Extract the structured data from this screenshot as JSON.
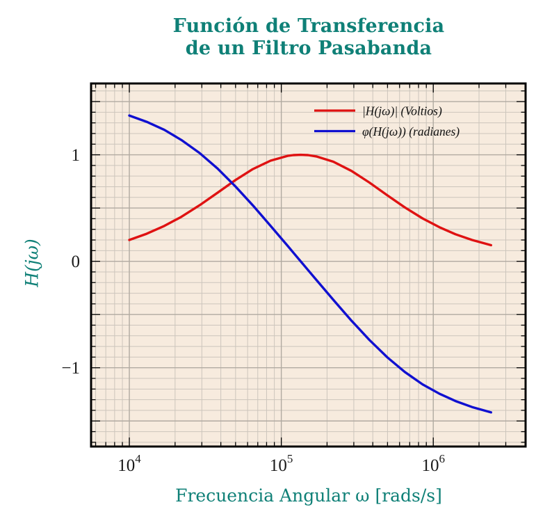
{
  "title": {
    "line1": "Función de Transferencia",
    "line2": "de un Filtro Pasabanda"
  },
  "colors": {
    "teal": "#0f8077",
    "magnitude_red": "#df1212",
    "phase_blue": "#1010d0",
    "plot_background": "#f7ebde",
    "grid_minor": "#ccc5bc",
    "grid_major": "#b1aaa1",
    "spine": "#000000",
    "tick_text": "#1a1a1a"
  },
  "axes": {
    "xlabel": "Frecuencia Angular ω [rads/s]",
    "ylabel": "H(jω)",
    "x_scale": "log",
    "x_ticks": [
      {
        "value": 10000,
        "base": "10",
        "exp": "4"
      },
      {
        "value": 100000,
        "base": "10",
        "exp": "5"
      },
      {
        "value": 1000000,
        "base": "10",
        "exp": "6"
      }
    ],
    "y_ticks": [
      {
        "value": 1,
        "label": "1"
      },
      {
        "value": 0,
        "label": "0"
      },
      {
        "value": -1,
        "label": "−1"
      }
    ]
  },
  "legend": {
    "entries": [
      {
        "label": "|H(jω)| (Voltios)",
        "series": "magnitude"
      },
      {
        "label": "φ(H(jω)) (radianes)",
        "series": "phase"
      }
    ]
  },
  "chart_data": {
    "type": "line",
    "title": "Función de Transferencia de un Filtro Pasabanda",
    "xlabel": "Frecuencia Angular ω [rads/s]",
    "ylabel": "H(jω)",
    "x_scale": "log",
    "grid": "both",
    "legend_position": "upper right",
    "xlim": [
      5600,
      4050000
    ],
    "ylim": [
      -1.74,
      1.67
    ],
    "x": [
      10000,
      13000,
      17000,
      22000,
      29000,
      38000,
      50000,
      65000,
      85000,
      110000,
      120000,
      134000,
      150000,
      170000,
      220000,
      290000,
      380000,
      500000,
      650000,
      850000,
      1100000,
      1400000,
      1800000,
      2400000
    ],
    "series": [
      {
        "name": "|H(jω)| (Voltios)",
        "color": "#df1212",
        "values": [
          0.2,
          0.258,
          0.332,
          0.418,
          0.526,
          0.643,
          0.763,
          0.866,
          0.945,
          0.99,
          0.997,
          1.0,
          0.997,
          0.985,
          0.935,
          0.848,
          0.739,
          0.618,
          0.506,
          0.403,
          0.319,
          0.254,
          0.2,
          0.151
        ]
      },
      {
        "name": "φ(H(jω)) (radianes)",
        "color": "#1010d0",
        "values": [
          1.369,
          1.31,
          1.234,
          1.139,
          1.017,
          0.872,
          0.702,
          0.525,
          0.333,
          0.145,
          0.081,
          0.0,
          -0.083,
          -0.175,
          -0.362,
          -0.559,
          -0.739,
          -0.904,
          -1.04,
          -1.156,
          -1.245,
          -1.313,
          -1.369,
          -1.419
        ]
      }
    ]
  }
}
